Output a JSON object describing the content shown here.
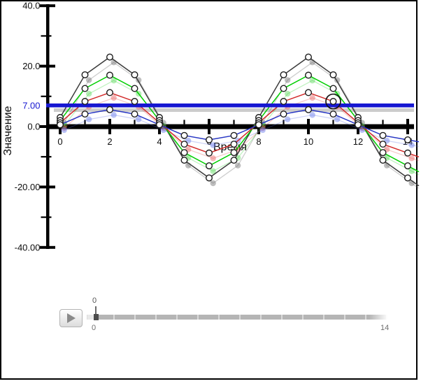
{
  "chart_data": {
    "type": "line",
    "xlabel": "Время",
    "ylabel": "Значение",
    "xlim": [
      0,
      14
    ],
    "ylim": [
      -40,
      40
    ],
    "grid": false,
    "legend": false,
    "x": [
      0,
      1,
      2,
      3,
      4,
      5,
      6,
      7,
      8,
      9,
      10,
      11,
      12,
      13,
      14
    ],
    "series": [
      {
        "id": "dark",
        "color": "#3c3c3c",
        "ghost_line": "rgba(90,90,90,0.30)",
        "ghost_fill": "rgba(110,110,110,0.45)",
        "values": [
          3,
          17.14,
          23,
          17.14,
          3,
          -11.14,
          -17,
          -11.14,
          3,
          17.14,
          23,
          17.14,
          3,
          -11.14,
          -17
        ]
      },
      {
        "id": "green",
        "color": "#00cf00",
        "ghost_line": "rgba(0,205,0,0.25)",
        "ghost_fill": "rgba(70,210,70,0.40)",
        "values": [
          2,
          12.61,
          17,
          12.61,
          2,
          -8.61,
          -13,
          -8.61,
          2,
          12.61,
          17,
          12.61,
          2,
          -8.61,
          -13
        ]
      },
      {
        "id": "red",
        "color": "#d22a2a",
        "ghost_line": "rgba(225,70,70,0.28)",
        "ghost_fill": "rgba(230,95,95,0.45)",
        "values": [
          1.25,
          8.32,
          11.25,
          8.32,
          1.25,
          -5.82,
          -8.75,
          -5.82,
          1.25,
          8.32,
          11.25,
          8.32,
          1.25,
          -5.82,
          -8.75
        ]
      },
      {
        "id": "blue",
        "color": "#2736c4",
        "ghost_line": "rgba(80,100,225,0.28)",
        "ghost_fill": "rgba(100,120,235,0.45)",
        "values": [
          0.6,
          4.14,
          5.6,
          4.14,
          0.6,
          -2.94,
          -4.4,
          -2.94,
          0.6,
          4.14,
          5.6,
          4.14,
          0.6,
          -2.94,
          -4.4
        ]
      }
    ],
    "ghost_echo": {
      "dx": 0.16,
      "dv": -1.75
    },
    "threshold": {
      "value": 7.0,
      "label": "7.00",
      "color": "#1617d1",
      "ghost_value": 5.45,
      "ghost_color": "#cccccc"
    },
    "highlight": {
      "series_index": 2,
      "x": 11
    },
    "y_ticks": [
      {
        "v": 40,
        "label": "40.0"
      },
      {
        "v": 20,
        "label": "20.0"
      },
      {
        "v": 0,
        "label": "0.0"
      },
      {
        "v": -20,
        "label": "-20.00"
      },
      {
        "v": -40,
        "label": "-40.00"
      }
    ],
    "y_minor_ticks": [
      30,
      10,
      -10,
      -30
    ],
    "x_ticks": [
      {
        "v": 0,
        "label": "0"
      },
      {
        "v": 2,
        "label": "2"
      },
      {
        "v": 4,
        "label": "4"
      },
      {
        "v": 6,
        "label": "6"
      },
      {
        "v": 8,
        "label": "8"
      },
      {
        "v": 10,
        "label": "10"
      },
      {
        "v": 12,
        "label": "12"
      },
      {
        "v": 14,
        "label": "14"
      }
    ],
    "x_minor_ticks": [
      1,
      3,
      5,
      7,
      9,
      11,
      13
    ]
  },
  "controls": {
    "play": {
      "icon": "triangle-right"
    },
    "slider": {
      "value": 0,
      "min": 0,
      "max": 14,
      "value_label": "0",
      "min_label": "0",
      "max_label": "14"
    }
  }
}
